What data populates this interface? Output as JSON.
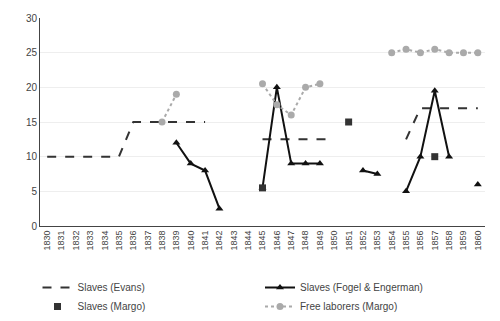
{
  "chart_data": {
    "type": "line",
    "x": [
      1830,
      1831,
      1832,
      1833,
      1834,
      1835,
      1836,
      1837,
      1838,
      1839,
      1840,
      1841,
      1842,
      1843,
      1844,
      1845,
      1846,
      1847,
      1848,
      1849,
      1850,
      1851,
      1852,
      1853,
      1854,
      1855,
      1856,
      1857,
      1858,
      1859,
      1860
    ],
    "series": [
      {
        "name": "Slaves (Evans)",
        "color": "#333333",
        "line_style": "dashed",
        "values": [
          10,
          10,
          10,
          10,
          10,
          10,
          15,
          15,
          15,
          15,
          15,
          15,
          null,
          null,
          null,
          12.5,
          12.5,
          12.5,
          12.5,
          12.5,
          12.5,
          null,
          null,
          null,
          null,
          12.5,
          17,
          17,
          17,
          17,
          17
        ]
      },
      {
        "name": "Slaves (Fogel & Engerman)",
        "color": "#111111",
        "line_style": "solid",
        "marker": "triangle",
        "values": [
          null,
          null,
          null,
          null,
          null,
          null,
          null,
          null,
          null,
          12,
          9,
          8,
          2.5,
          null,
          null,
          5.5,
          20,
          9,
          9,
          9,
          null,
          null,
          8,
          7.5,
          null,
          5,
          10,
          19.5,
          10,
          null,
          6
        ]
      },
      {
        "name": "Slaves (Margo)",
        "color": "#333333",
        "type": "scatter",
        "marker": "square",
        "values": [
          null,
          null,
          null,
          null,
          null,
          null,
          null,
          null,
          null,
          null,
          null,
          null,
          null,
          null,
          null,
          5.5,
          null,
          null,
          null,
          null,
          null,
          15,
          null,
          null,
          null,
          null,
          null,
          10,
          null,
          null,
          null
        ]
      },
      {
        "name": "Free laborers (Margo)",
        "color": "#aaaaaa",
        "line_style": "dotted",
        "marker": "circle",
        "values": [
          null,
          null,
          null,
          null,
          null,
          null,
          null,
          null,
          15,
          19,
          null,
          null,
          null,
          null,
          null,
          20.5,
          17.5,
          16,
          20,
          20.5,
          null,
          null,
          null,
          null,
          25,
          25.5,
          25,
          25.5,
          25,
          25,
          25
        ]
      }
    ],
    "xlim": [
      1829.5,
      1860.5
    ],
    "xticks": [
      1830,
      1831,
      1832,
      1833,
      1834,
      1835,
      1836,
      1837,
      1838,
      1839,
      1840,
      1841,
      1842,
      1843,
      1844,
      1845,
      1846,
      1847,
      1848,
      1849,
      1850,
      1851,
      1852,
      1853,
      1854,
      1855,
      1856,
      1857,
      1858,
      1859,
      1860
    ],
    "ylim": [
      0,
      30
    ],
    "yticks": [
      0,
      5,
      10,
      15,
      20,
      25,
      30
    ],
    "grid": "y",
    "legend": "bottom"
  }
}
